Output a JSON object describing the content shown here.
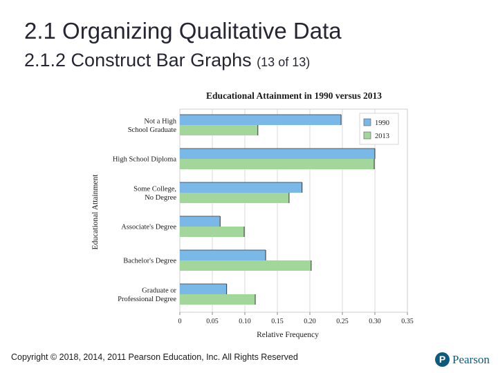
{
  "slide": {
    "title": "2.1 Organizing Qualitative Data",
    "subtitle": "2.1.2 Construct Bar Graphs",
    "subtitle_suffix": "(13 of 13)",
    "copyright": "Copyright © 2018, 2014, 2011 Pearson Education, Inc. All Rights Reserved",
    "brand": "Pearson",
    "brand_mark": "P"
  },
  "chart_data": {
    "type": "bar",
    "orientation": "horizontal",
    "title": "Educational Attainment in 1990 versus 2013",
    "xlabel": "Relative Frequency",
    "ylabel": "Educational Attainment",
    "xlim": [
      0,
      0.35
    ],
    "xticks": [
      "0",
      "0.05",
      "0.10",
      "0.15",
      "0.20",
      "0.25",
      "0.30",
      "0.35"
    ],
    "grid": true,
    "legend": "top-right",
    "categories": [
      [
        "Not a High",
        "School Graduate"
      ],
      [
        "High School Diploma"
      ],
      [
        "Some College,",
        "No Degree"
      ],
      [
        "Associate's Degree"
      ],
      [
        "Bachelor's Degree"
      ],
      [
        "Graduate or",
        "Professional Degree"
      ]
    ],
    "series": [
      {
        "name": "1990",
        "color": "#7ab8e8",
        "values": [
          0.248,
          0.3,
          0.188,
          0.062,
          0.132,
          0.072
        ]
      },
      {
        "name": "2013",
        "color": "#a3d69a",
        "values": [
          0.12,
          0.299,
          0.168,
          0.099,
          0.202,
          0.116
        ]
      }
    ]
  }
}
